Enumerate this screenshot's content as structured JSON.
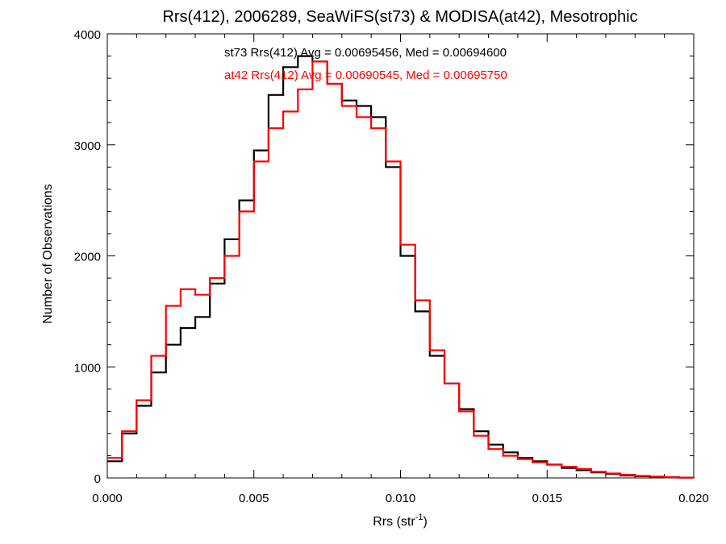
{
  "chart_data": {
    "type": "line",
    "title": "Rrs(412), 2006289, SeaWiFS(st73) & MODISA(at42), Mesotrophic",
    "xlabel": "Rrs (str",
    "xlabel_sup": "-1",
    "xlabel_end": ")",
    "ylabel": "Number of Observations",
    "xlim": [
      0.0,
      0.02
    ],
    "ylim": [
      0,
      4000
    ],
    "xticks": [
      0.0,
      0.005,
      0.01,
      0.015,
      0.02
    ],
    "xtick_labels": [
      "0.000",
      "0.005",
      "0.010",
      "0.015",
      "0.020"
    ],
    "yticks": [
      0,
      1000,
      2000,
      3000,
      4000
    ],
    "ytick_labels": [
      "0",
      "1000",
      "2000",
      "3000",
      "4000"
    ],
    "grid": false,
    "series": [
      {
        "name": "st73",
        "color": "#000000",
        "annotation": "st73 Rrs(412) Avg = 0.00695456, Med = 0.00694600",
        "x": [
          0.0,
          0.0005,
          0.001,
          0.0015,
          0.002,
          0.0025,
          0.003,
          0.0035,
          0.004,
          0.0045,
          0.005,
          0.0055,
          0.006,
          0.0065,
          0.007,
          0.0075,
          0.008,
          0.0085,
          0.009,
          0.0095,
          0.01,
          0.0105,
          0.011,
          0.0115,
          0.012,
          0.0125,
          0.013,
          0.0135,
          0.014,
          0.0145,
          0.015,
          0.0155,
          0.016,
          0.0165,
          0.017,
          0.0175,
          0.018,
          0.0185,
          0.019,
          0.0195,
          0.02
        ],
        "values": [
          150,
          400,
          650,
          950,
          1200,
          1350,
          1450,
          1750,
          2150,
          2500,
          2950,
          3450,
          3700,
          3800,
          3750,
          3550,
          3400,
          3350,
          3250,
          2800,
          2000,
          1500,
          1100,
          850,
          620,
          420,
          300,
          230,
          180,
          150,
          120,
          90,
          70,
          50,
          35,
          22,
          15,
          10,
          6,
          3,
          0
        ]
      },
      {
        "name": "at42",
        "color": "#ff0000",
        "annotation": "at42 Rrs(412) Avg = 0.00690545, Med = 0.00695750",
        "x": [
          0.0,
          0.0005,
          0.001,
          0.0015,
          0.002,
          0.0025,
          0.003,
          0.0035,
          0.004,
          0.0045,
          0.005,
          0.0055,
          0.006,
          0.0065,
          0.007,
          0.0075,
          0.008,
          0.0085,
          0.009,
          0.0095,
          0.01,
          0.0105,
          0.011,
          0.0115,
          0.012,
          0.0125,
          0.013,
          0.0135,
          0.014,
          0.0145,
          0.015,
          0.0155,
          0.016,
          0.0165,
          0.017,
          0.0175,
          0.018,
          0.0185,
          0.019,
          0.0195,
          0.02
        ],
        "values": [
          180,
          420,
          700,
          1100,
          1550,
          1700,
          1650,
          1800,
          2000,
          2400,
          2850,
          3150,
          3300,
          3500,
          3750,
          3550,
          3350,
          3250,
          3150,
          2850,
          2100,
          1600,
          1150,
          850,
          600,
          380,
          260,
          200,
          170,
          140,
          120,
          100,
          80,
          55,
          40,
          28,
          18,
          12,
          7,
          3,
          0
        ]
      }
    ]
  }
}
